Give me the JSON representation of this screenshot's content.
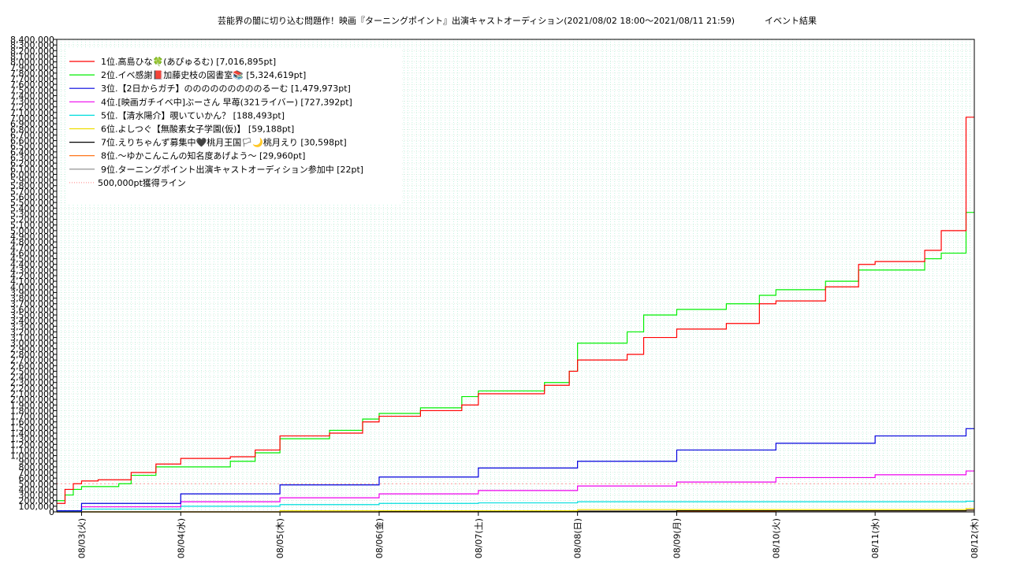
{
  "chart_data": {
    "type": "line",
    "title": "芸能界の闇に切り込む問題作！映画『ターニングポイント』出演キャストオーディション(2021/08/02 18:00〜2021/08/11 21:59)",
    "subtitle": "イベント結果",
    "xlabel": "",
    "ylabel": "",
    "ylim": [
      0,
      8400000
    ],
    "y_tick_step": 100000,
    "x_range": [
      "2021-08-02 18:00",
      "2021-08-12 00:00"
    ],
    "x_ticks": [
      {
        "x": "2021-08-03 00:00",
        "label": "08/03(火)"
      },
      {
        "x": "2021-08-04 00:00",
        "label": "08/04(水)"
      },
      {
        "x": "2021-08-05 00:00",
        "label": "08/05(木)"
      },
      {
        "x": "2021-08-06 00:00",
        "label": "08/06(金)"
      },
      {
        "x": "2021-08-07 00:00",
        "label": "08/07(土)"
      },
      {
        "x": "2021-08-08 00:00",
        "label": "08/08(日)"
      },
      {
        "x": "2021-08-09 00:00",
        "label": "08/09(月)"
      },
      {
        "x": "2021-08-10 00:00",
        "label": "08/10(火)"
      },
      {
        "x": "2021-08-11 00:00",
        "label": "08/11(水)"
      },
      {
        "x": "2021-08-12 00:00",
        "label": "08/12(木)"
      }
    ],
    "grid": true,
    "legend_position": "top-left",
    "threshold": {
      "name": "500,000pt獲得ライン",
      "value": 500000,
      "color": "#ff9999"
    },
    "series": [
      {
        "name": "1位.高島ひな🍀(あぴゅるむ) [7,016,895pt]",
        "color": "#ff0000",
        "points": [
          [
            "2021-08-02 18:00",
            150000
          ],
          [
            "2021-08-02 20:00",
            400000
          ],
          [
            "2021-08-02 22:00",
            500000
          ],
          [
            "2021-08-03 00:00",
            550000
          ],
          [
            "2021-08-03 04:00",
            570000
          ],
          [
            "2021-08-03 09:00",
            570000
          ],
          [
            "2021-08-03 12:00",
            700000
          ],
          [
            "2021-08-03 18:00",
            850000
          ],
          [
            "2021-08-04 00:00",
            950000
          ],
          [
            "2021-08-04 12:00",
            980000
          ],
          [
            "2021-08-04 18:00",
            1100000
          ],
          [
            "2021-08-05 00:00",
            1350000
          ],
          [
            "2021-08-05 12:00",
            1400000
          ],
          [
            "2021-08-05 20:00",
            1600000
          ],
          [
            "2021-08-06 00:00",
            1700000
          ],
          [
            "2021-08-06 10:00",
            1800000
          ],
          [
            "2021-08-06 20:00",
            1900000
          ],
          [
            "2021-08-07 00:00",
            2100000
          ],
          [
            "2021-08-07 16:00",
            2250000
          ],
          [
            "2021-08-07 22:00",
            2500000
          ],
          [
            "2021-08-08 00:00",
            2700000
          ],
          [
            "2021-08-08 12:00",
            2800000
          ],
          [
            "2021-08-08 16:00",
            3100000
          ],
          [
            "2021-08-09 00:00",
            3250000
          ],
          [
            "2021-08-09 12:00",
            3350000
          ],
          [
            "2021-08-09 20:00",
            3700000
          ],
          [
            "2021-08-10 00:00",
            3750000
          ],
          [
            "2021-08-10 12:00",
            4000000
          ],
          [
            "2021-08-10 20:00",
            4400000
          ],
          [
            "2021-08-11 00:00",
            4450000
          ],
          [
            "2021-08-11 12:00",
            4650000
          ],
          [
            "2021-08-11 16:00",
            5000000
          ],
          [
            "2021-08-11 22:00",
            7016895
          ]
        ]
      },
      {
        "name": "2位.イベ感謝📕加藤史枝の図書室📚 [5,324,619pt]",
        "color": "#00ee00",
        "points": [
          [
            "2021-08-02 18:00",
            200000
          ],
          [
            "2021-08-02 20:00",
            300000
          ],
          [
            "2021-08-02 22:00",
            400000
          ],
          [
            "2021-08-03 00:00",
            450000
          ],
          [
            "2021-08-03 04:00",
            450000
          ],
          [
            "2021-08-03 09:00",
            500000
          ],
          [
            "2021-08-03 12:00",
            650000
          ],
          [
            "2021-08-03 18:00",
            800000
          ],
          [
            "2021-08-04 00:00",
            800000
          ],
          [
            "2021-08-04 12:00",
            900000
          ],
          [
            "2021-08-04 18:00",
            1050000
          ],
          [
            "2021-08-05 00:00",
            1300000
          ],
          [
            "2021-08-05 12:00",
            1450000
          ],
          [
            "2021-08-05 20:00",
            1650000
          ],
          [
            "2021-08-06 00:00",
            1750000
          ],
          [
            "2021-08-06 10:00",
            1850000
          ],
          [
            "2021-08-06 20:00",
            2050000
          ],
          [
            "2021-08-07 00:00",
            2150000
          ],
          [
            "2021-08-07 16:00",
            2300000
          ],
          [
            "2021-08-07 22:00",
            2500000
          ],
          [
            "2021-08-08 00:00",
            3000000
          ],
          [
            "2021-08-08 12:00",
            3200000
          ],
          [
            "2021-08-08 16:00",
            3500000
          ],
          [
            "2021-08-09 00:00",
            3600000
          ],
          [
            "2021-08-09 12:00",
            3700000
          ],
          [
            "2021-08-09 20:00",
            3850000
          ],
          [
            "2021-08-10 00:00",
            3950000
          ],
          [
            "2021-08-10 12:00",
            4100000
          ],
          [
            "2021-08-10 20:00",
            4300000
          ],
          [
            "2021-08-11 00:00",
            4300000
          ],
          [
            "2021-08-11 12:00",
            4500000
          ],
          [
            "2021-08-11 16:00",
            4600000
          ],
          [
            "2021-08-11 22:00",
            5324619
          ]
        ]
      },
      {
        "name": "3位.【2日からガチ】のののののののののるーむ [1,479,973pt]",
        "color": "#0000dd",
        "points": [
          [
            "2021-08-02 18:00",
            20000
          ],
          [
            "2021-08-03 00:00",
            150000
          ],
          [
            "2021-08-04 00:00",
            320000
          ],
          [
            "2021-08-05 00:00",
            480000
          ],
          [
            "2021-08-06 00:00",
            620000
          ],
          [
            "2021-08-07 00:00",
            780000
          ],
          [
            "2021-08-08 00:00",
            900000
          ],
          [
            "2021-08-09 00:00",
            1100000
          ],
          [
            "2021-08-10 00:00",
            1220000
          ],
          [
            "2021-08-11 00:00",
            1350000
          ],
          [
            "2021-08-11 22:00",
            1479973
          ]
        ]
      },
      {
        "name": "4位.[映画ガチイベ中]ぶーさん 早苺(321ライバー) [727,392pt]",
        "color": "#ee00ee",
        "points": [
          [
            "2021-08-02 18:00",
            20000
          ],
          [
            "2021-08-03 00:00",
            90000
          ],
          [
            "2021-08-04 00:00",
            180000
          ],
          [
            "2021-08-05 00:00",
            250000
          ],
          [
            "2021-08-06 00:00",
            320000
          ],
          [
            "2021-08-07 00:00",
            380000
          ],
          [
            "2021-08-08 00:00",
            460000
          ],
          [
            "2021-08-09 00:00",
            530000
          ],
          [
            "2021-08-10 00:00",
            610000
          ],
          [
            "2021-08-11 00:00",
            660000
          ],
          [
            "2021-08-11 22:00",
            727392
          ]
        ]
      },
      {
        "name": "5位.【清水陽介】覗いていかん？ [188,493pt]",
        "color": "#00dddd",
        "points": [
          [
            "2021-08-02 18:00",
            10000
          ],
          [
            "2021-08-03 00:00",
            50000
          ],
          [
            "2021-08-04 00:00",
            100000
          ],
          [
            "2021-08-05 00:00",
            130000
          ],
          [
            "2021-08-06 00:00",
            150000
          ],
          [
            "2021-08-07 00:00",
            160000
          ],
          [
            "2021-08-08 00:00",
            180000
          ],
          [
            "2021-08-11 22:00",
            188493
          ]
        ]
      },
      {
        "name": "6位.よしつぐ【無酸素女子学園(仮)】 [59,188pt]",
        "color": "#eedd00",
        "points": [
          [
            "2021-08-02 18:00",
            0
          ],
          [
            "2021-08-05 00:00",
            20000
          ],
          [
            "2021-08-08 00:00",
            40000
          ],
          [
            "2021-08-11 22:00",
            59188
          ]
        ]
      },
      {
        "name": "7位.えりちゃんず募集中🖤桃月王国🏳🌙桃月えり [30,598pt]",
        "color": "#000000",
        "points": [
          [
            "2021-08-02 18:00",
            0
          ],
          [
            "2021-08-06 00:00",
            10000
          ],
          [
            "2021-08-09 00:00",
            20000
          ],
          [
            "2021-08-11 22:00",
            30598
          ]
        ]
      },
      {
        "name": "8位.〜ゆかこんこんの知名度あげよう〜 [29,960pt]",
        "color": "#ff6600",
        "points": [
          [
            "2021-08-02 18:00",
            0
          ],
          [
            "2021-08-07 00:00",
            10000
          ],
          [
            "2021-08-10 00:00",
            20000
          ],
          [
            "2021-08-11 22:00",
            29960
          ]
        ]
      },
      {
        "name": "9位.ターニングポイント出演キャストオーディション参加中 [22pt]",
        "color": "#888888",
        "points": [
          [
            "2021-08-02 18:00",
            0
          ],
          [
            "2021-08-11 22:00",
            22
          ]
        ]
      }
    ]
  }
}
